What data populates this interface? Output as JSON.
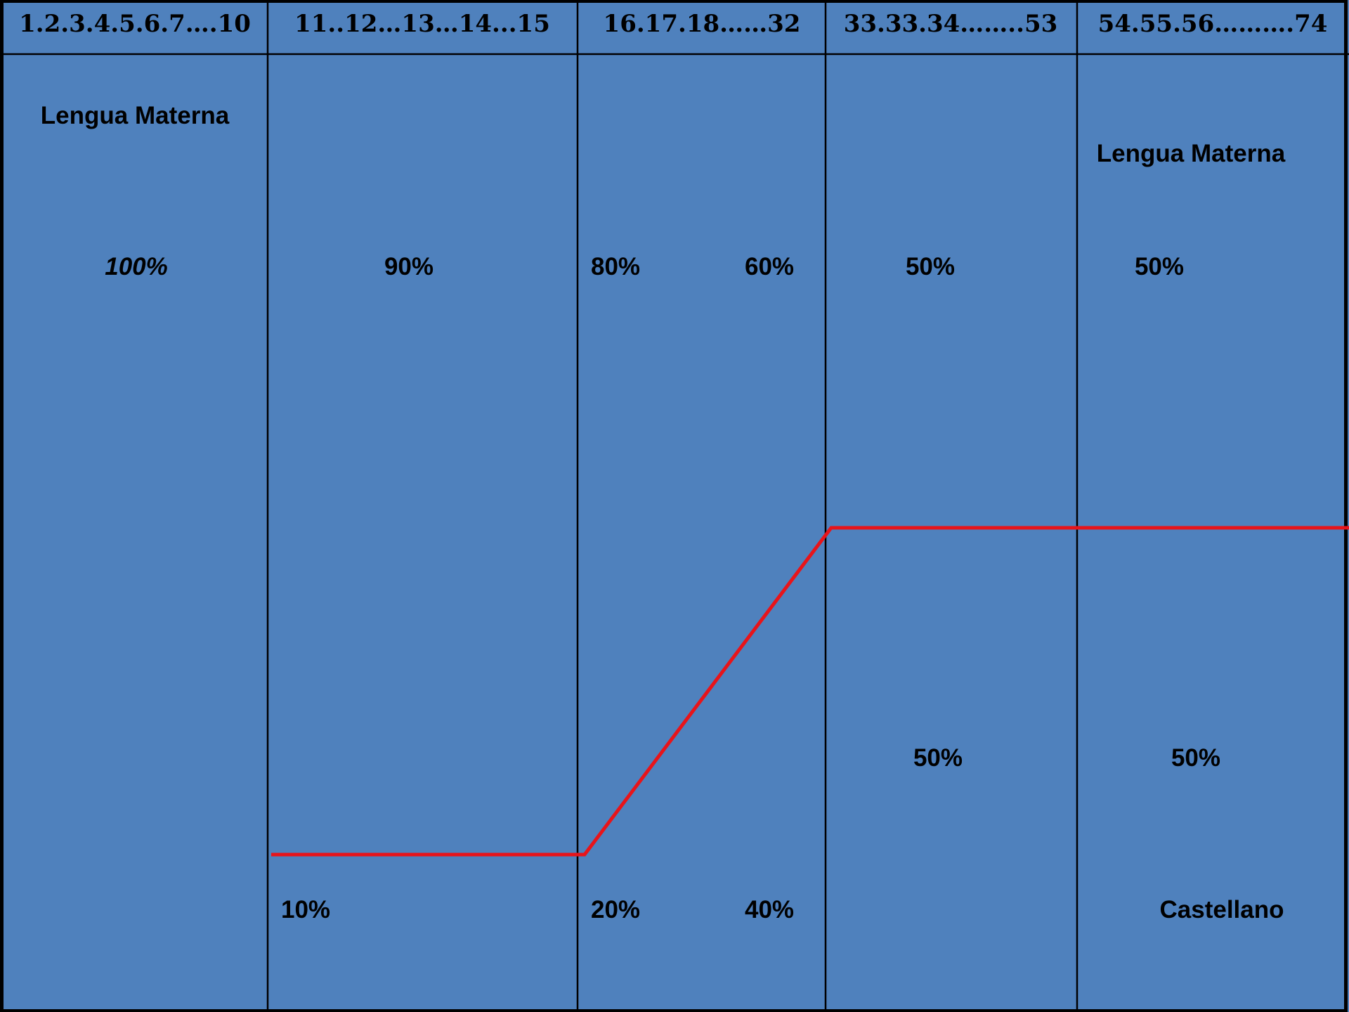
{
  "colors": {
    "background": "#4f81bd",
    "grid_lines": "#000000",
    "transition_line": "#e8141a"
  },
  "columns": [
    {
      "header": "1.2.3.4.5.6.7….10"
    },
    {
      "header": "11..12…13…14...15"
    },
    {
      "header": "16.17.18……32"
    },
    {
      "header": "33.33.34……..53"
    },
    {
      "header": "54.55.56……….74"
    }
  ],
  "labels": {
    "col1_language": "Lengua Materna",
    "col1_percent": "100%",
    "col2_upper": "90%",
    "col2_lower": "10%",
    "col3_upper_left": "80%",
    "col3_upper_right": "60%",
    "col3_lower_left": "20%",
    "col3_lower_right": "40%",
    "col4_upper": "50%",
    "col4_lower": "50%",
    "col5_language": "Lengua Materna",
    "col5_upper": "50%",
    "col5_lower": "50%",
    "col5_castellano": "Castellano"
  }
}
